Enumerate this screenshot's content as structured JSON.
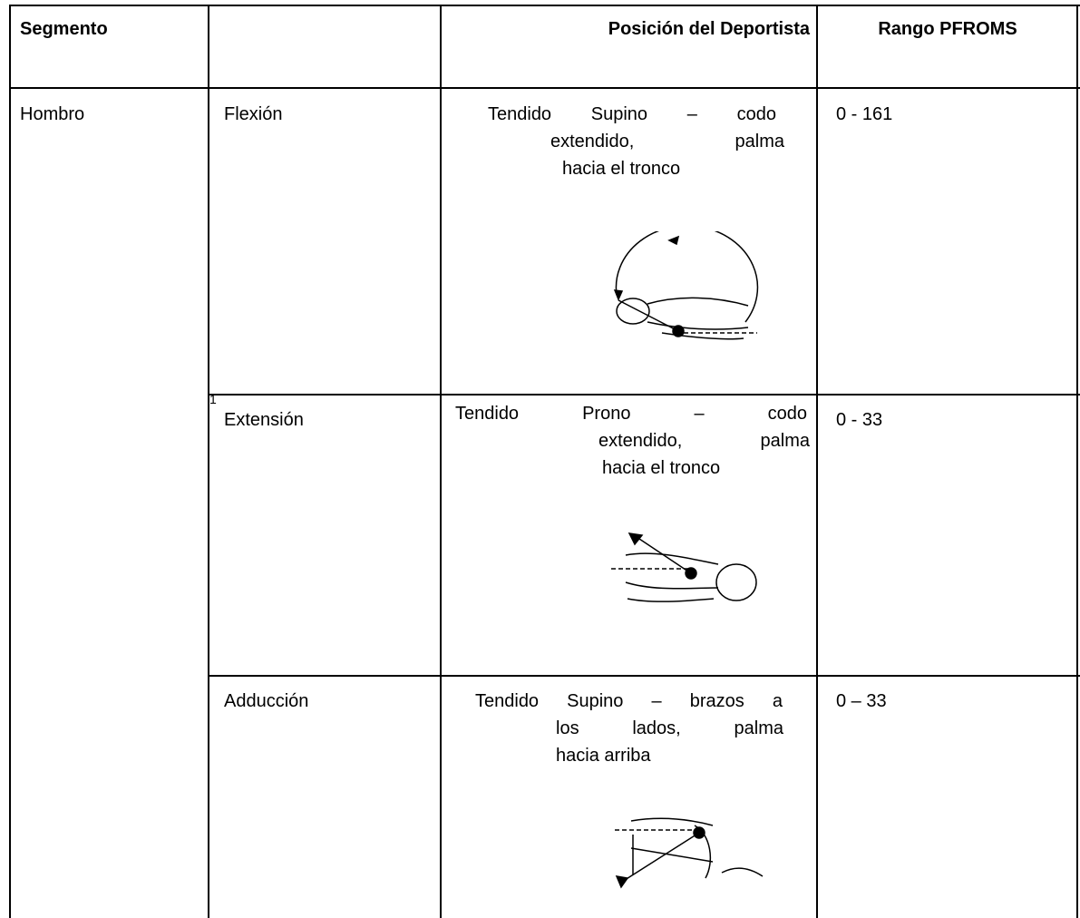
{
  "table": {
    "header": [
      "Segmento",
      "Posición del Deportista",
      "Rango PFROMS"
    ],
    "segment": "Hombro",
    "rows": [
      {
        "movement": "Flexión",
        "position": [
          "Tendido Supino – codo",
          "extendido, palma",
          "hacia el tronco"
        ],
        "range": "0 - 161"
      },
      {
        "movement": "Extensión",
        "footnote": "1",
        "position": [
          "Tendido Prono – codo",
          "extendido, palma",
          "hacia el tronco"
        ],
        "range": "0 - 33"
      },
      {
        "movement": "Adducción",
        "position": [
          "Tendido Supino – brazos a",
          "los lados, palma",
          "hacia arriba"
        ],
        "range": "0 – 33"
      }
    ]
  }
}
